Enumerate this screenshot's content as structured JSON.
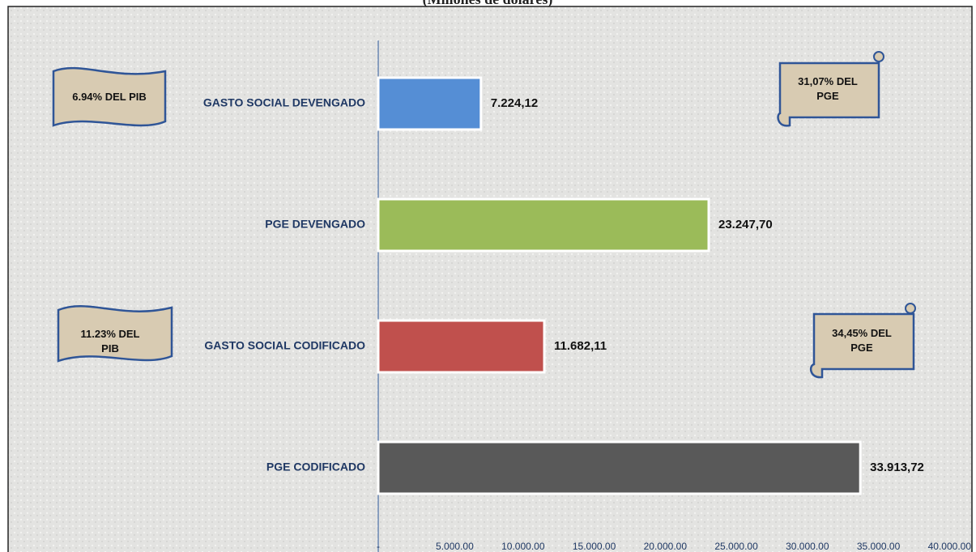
{
  "chart_data": {
    "type": "bar",
    "orientation": "horizontal",
    "subtitle": "(Millones de dólares)",
    "categories": [
      "GASTO SOCIAL DEVENGADO",
      "PGE DEVENGADO",
      "GASTO SOCIAL CODIFICADO",
      "PGE CODIFICADO"
    ],
    "values": [
      7224.12,
      23247.7,
      11682.11,
      33913.72
    ],
    "value_labels": [
      "7.224,12",
      "23.247,70",
      "11.682,11",
      "33.913,72"
    ],
    "colors": [
      "#558ed5",
      "#9bbb59",
      "#c0504d",
      "#595959"
    ],
    "xlim": [
      0,
      40000
    ],
    "xticks": [
      {
        "value": 0,
        "label": "-"
      },
      {
        "value": 5000,
        "label": "5.000.00"
      },
      {
        "value": 10000,
        "label": "10.000.00"
      },
      {
        "value": 15000,
        "label": "15.000.00"
      },
      {
        "value": 20000,
        "label": "20.000.00"
      },
      {
        "value": 25000,
        "label": "25.000.00"
      },
      {
        "value": 30000,
        "label": "30.000.00"
      },
      {
        "value": 35000,
        "label": "35.000.00"
      },
      {
        "value": 40000,
        "label": "40.000.00"
      }
    ],
    "annotations": [
      "6.94% DEL PIB",
      "31,07% DEL PGE",
      "11.23% DEL PIB",
      "34,45% DEL PGE"
    ]
  }
}
